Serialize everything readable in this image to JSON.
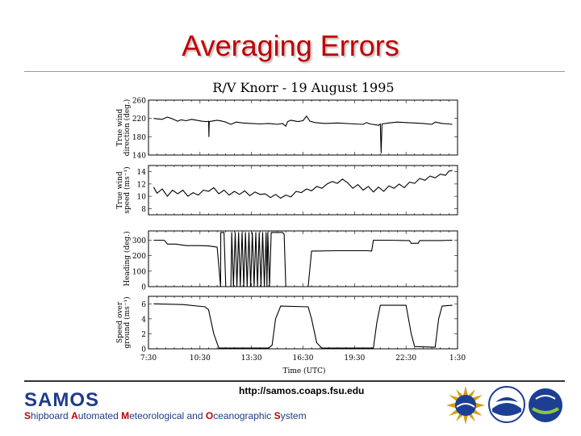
{
  "slide": {
    "title": "Averaging Errors",
    "url": "http://samos.coaps.fsu.edu",
    "logo_text": "SAMOS",
    "tagline_parts": [
      {
        "cap": "S",
        "rest": "hipboard "
      },
      {
        "cap": "A",
        "rest": "utomated "
      },
      {
        "cap": "M",
        "rest": "eteorological and "
      },
      {
        "cap": "O",
        "rest": "ceanographic "
      },
      {
        "cap": "S",
        "rest": "ystem"
      }
    ],
    "logos": [
      "nsf-logo",
      "noaa-logo",
      "coaps-logo"
    ],
    "colors": {
      "title": "#c00000",
      "samos_blue": "#1f3b8a",
      "tagline_caps": "#c00000"
    }
  },
  "chart_data": {
    "type": "line",
    "title": "R/V Knorr - 19 August 1995",
    "xlabel": "Time (UTC)",
    "x_ticks": [
      "7:30",
      "10:30",
      "13:30",
      "16:30",
      "19:30",
      "22:30",
      "1:30"
    ],
    "xlim_hours": [
      7.5,
      25.5
    ],
    "panels": [
      {
        "name": "wind-direction",
        "ylabel_lines": [
          "True wind",
          "direction (deg.)"
        ],
        "ylim": [
          140,
          260
        ],
        "y_ticks": [
          140,
          180,
          220,
          260
        ],
        "series": [
          [
            7.8,
            220
          ],
          [
            8.3,
            218
          ],
          [
            8.6,
            223
          ],
          [
            8.9,
            219
          ],
          [
            9.2,
            214
          ],
          [
            9.4,
            217
          ],
          [
            9.7,
            215
          ],
          [
            10.0,
            218
          ],
          [
            10.3,
            216
          ],
          [
            10.6,
            214
          ],
          [
            10.9,
            213
          ],
          [
            11.0,
            214
          ],
          [
            11.02,
            180
          ],
          [
            11.04,
            213
          ],
          [
            11.5,
            216
          ],
          [
            11.8,
            214
          ],
          [
            12.0,
            212
          ],
          [
            12.3,
            207
          ],
          [
            12.6,
            212
          ],
          [
            13.0,
            210
          ],
          [
            13.5,
            209
          ],
          [
            14.0,
            208
          ],
          [
            14.5,
            209
          ],
          [
            15.0,
            207
          ],
          [
            15.3,
            209
          ],
          [
            15.5,
            203
          ],
          [
            15.6,
            213
          ],
          [
            15.8,
            216
          ],
          [
            16.2,
            213
          ],
          [
            16.5,
            215
          ],
          [
            16.7,
            225
          ],
          [
            16.9,
            214
          ],
          [
            17.2,
            211
          ],
          [
            17.8,
            209
          ],
          [
            18.5,
            210
          ],
          [
            19.5,
            208
          ],
          [
            20.0,
            207
          ],
          [
            20.2,
            211
          ],
          [
            20.4,
            208
          ],
          [
            20.9,
            205
          ],
          [
            21.0,
            208
          ],
          [
            21.05,
            145
          ],
          [
            21.1,
            208
          ],
          [
            21.5,
            210
          ],
          [
            22.0,
            212
          ],
          [
            22.5,
            211
          ],
          [
            23.0,
            210
          ],
          [
            23.5,
            209
          ],
          [
            24.0,
            207
          ],
          [
            24.2,
            212
          ],
          [
            24.6,
            209
          ],
          [
            25.0,
            208
          ],
          [
            25.2,
            207
          ]
        ]
      },
      {
        "name": "wind-speed",
        "ylabel_lines": [
          "True wind",
          "speed (ms⁻¹)"
        ],
        "ylim": [
          7,
          15
        ],
        "y_ticks": [
          8,
          10,
          12,
          14
        ],
        "series": [
          [
            7.8,
            11.5
          ],
          [
            8.0,
            10.5
          ],
          [
            8.3,
            11.2
          ],
          [
            8.6,
            10.0
          ],
          [
            8.9,
            11.0
          ],
          [
            9.2,
            10.4
          ],
          [
            9.5,
            11.0
          ],
          [
            9.8,
            10.0
          ],
          [
            10.1,
            10.6
          ],
          [
            10.4,
            10.2
          ],
          [
            10.7,
            11.0
          ],
          [
            11.0,
            10.8
          ],
          [
            11.3,
            11.4
          ],
          [
            11.6,
            10.4
          ],
          [
            11.9,
            11.0
          ],
          [
            12.2,
            10.2
          ],
          [
            12.5,
            10.8
          ],
          [
            12.8,
            10.3
          ],
          [
            13.1,
            10.9
          ],
          [
            13.4,
            10.1
          ],
          [
            13.7,
            10.7
          ],
          [
            14.0,
            10.3
          ],
          [
            14.3,
            10.4
          ],
          [
            14.6,
            9.8
          ],
          [
            14.9,
            10.3
          ],
          [
            15.2,
            9.7
          ],
          [
            15.5,
            10.2
          ],
          [
            15.8,
            9.9
          ],
          [
            16.1,
            10.8
          ],
          [
            16.4,
            10.6
          ],
          [
            16.7,
            11.2
          ],
          [
            17.0,
            10.9
          ],
          [
            17.3,
            11.6
          ],
          [
            17.6,
            11.3
          ],
          [
            17.9,
            12.0
          ],
          [
            18.2,
            12.4
          ],
          [
            18.5,
            12.1
          ],
          [
            18.8,
            12.8
          ],
          [
            19.1,
            12.2
          ],
          [
            19.4,
            11.3
          ],
          [
            19.7,
            11.9
          ],
          [
            20.0,
            11.0
          ],
          [
            20.3,
            11.6
          ],
          [
            20.6,
            10.7
          ],
          [
            20.9,
            11.5
          ],
          [
            21.2,
            10.8
          ],
          [
            21.5,
            11.7
          ],
          [
            21.8,
            11.3
          ],
          [
            22.1,
            12.0
          ],
          [
            22.4,
            11.4
          ],
          [
            22.7,
            12.3
          ],
          [
            23.0,
            12.1
          ],
          [
            23.3,
            12.9
          ],
          [
            23.6,
            12.6
          ],
          [
            23.9,
            13.3
          ],
          [
            24.2,
            13.0
          ],
          [
            24.5,
            13.6
          ],
          [
            24.8,
            13.4
          ],
          [
            25.0,
            14.1
          ],
          [
            25.2,
            14.2
          ]
        ]
      },
      {
        "name": "heading",
        "ylabel_lines": [
          "Heading (deg.)"
        ],
        "ylim": [
          0,
          360
        ],
        "y_ticks": [
          0,
          100,
          200,
          300
        ],
        "series": [
          [
            7.8,
            300
          ],
          [
            8.4,
            300
          ],
          [
            8.5,
            290
          ],
          [
            8.6,
            275
          ],
          [
            9.1,
            275
          ],
          [
            9.4,
            270
          ],
          [
            9.7,
            265
          ],
          [
            10.5,
            265
          ],
          [
            11.0,
            263
          ],
          [
            11.2,
            260
          ],
          [
            11.5,
            255
          ],
          [
            11.7,
            0
          ],
          [
            11.71,
            350
          ],
          [
            11.9,
            350
          ],
          [
            12.0,
            0
          ],
          [
            12.3,
            0
          ],
          [
            12.35,
            350
          ],
          [
            12.45,
            0
          ],
          [
            12.55,
            350
          ],
          [
            12.65,
            0
          ],
          [
            12.75,
            350
          ],
          [
            12.85,
            0
          ],
          [
            12.95,
            350
          ],
          [
            13.05,
            0
          ],
          [
            13.15,
            350
          ],
          [
            13.25,
            0
          ],
          [
            13.35,
            350
          ],
          [
            13.45,
            0
          ],
          [
            13.55,
            350
          ],
          [
            13.65,
            0
          ],
          [
            13.75,
            350
          ],
          [
            13.85,
            0
          ],
          [
            13.95,
            350
          ],
          [
            14.05,
            0
          ],
          [
            14.15,
            350
          ],
          [
            14.25,
            0
          ],
          [
            14.35,
            350
          ],
          [
            14.4,
            0
          ],
          [
            14.45,
            350
          ],
          [
            14.55,
            0
          ],
          [
            14.65,
            350
          ],
          [
            15.3,
            350
          ],
          [
            15.4,
            340
          ],
          [
            15.5,
            0
          ],
          [
            16.6,
            0
          ],
          [
            16.8,
            0
          ],
          [
            17.0,
            230
          ],
          [
            17.2,
            230
          ],
          [
            18.5,
            232
          ],
          [
            19.5,
            232
          ],
          [
            20.2,
            232
          ],
          [
            20.5,
            230
          ],
          [
            20.6,
            300
          ],
          [
            21.5,
            300
          ],
          [
            22.5,
            298
          ],
          [
            22.7,
            298
          ],
          [
            22.8,
            280
          ],
          [
            23.2,
            280
          ],
          [
            23.3,
            298
          ],
          [
            24.5,
            298
          ],
          [
            25.2,
            300
          ]
        ]
      },
      {
        "name": "speed-over-ground",
        "ylabel_lines": [
          "Speed over",
          "ground (ms⁻¹)"
        ],
        "ylim": [
          0,
          7
        ],
        "y_ticks": [
          0,
          2,
          4,
          6
        ],
        "series": [
          [
            7.8,
            6.0
          ],
          [
            9.5,
            5.9
          ],
          [
            10.8,
            5.6
          ],
          [
            11.0,
            5.2
          ],
          [
            11.3,
            2.0
          ],
          [
            11.6,
            0.1
          ],
          [
            14.5,
            0.1
          ],
          [
            14.7,
            0.5
          ],
          [
            14.9,
            4.0
          ],
          [
            15.2,
            5.7
          ],
          [
            16.8,
            5.6
          ],
          [
            17.0,
            4.0
          ],
          [
            17.3,
            0.8
          ],
          [
            17.6,
            0.1
          ],
          [
            20.6,
            0.1
          ],
          [
            20.8,
            3.5
          ],
          [
            21.0,
            5.8
          ],
          [
            22.5,
            5.8
          ],
          [
            22.8,
            2.0
          ],
          [
            23.0,
            0.3
          ],
          [
            24.2,
            0.2
          ],
          [
            24.4,
            4.0
          ],
          [
            24.6,
            5.7
          ],
          [
            25.2,
            5.8
          ]
        ]
      }
    ]
  }
}
